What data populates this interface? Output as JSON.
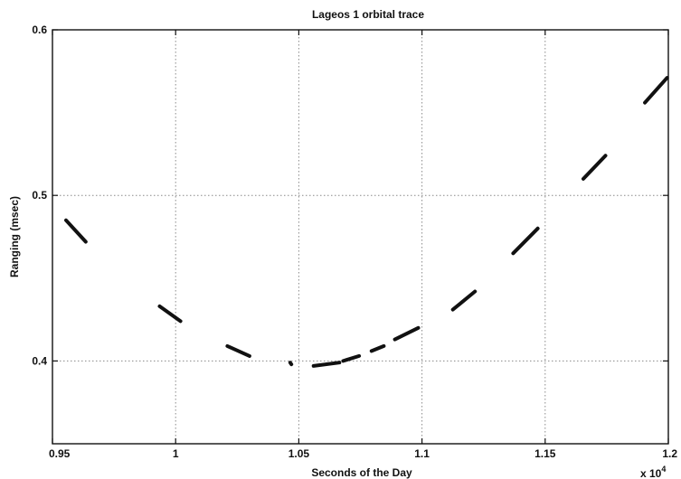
{
  "chart_data": {
    "type": "line",
    "title": "Lageos 1 orbital trace",
    "xlabel": "Seconds of the Day",
    "ylabel": "Ranging (msec)",
    "x_multiplier_label": "x 10",
    "x_multiplier_exponent": "4",
    "xlim": [
      0.95,
      1.2
    ],
    "ylim": [
      0.35,
      0.6
    ],
    "x_ticks": [
      0.95,
      1.0,
      1.05,
      1.1,
      1.15,
      1.2
    ],
    "x_tick_labels": [
      "0.95",
      "1",
      "1.05",
      "1.1",
      "1.15",
      "1.2"
    ],
    "y_ticks": [
      0.4,
      0.5,
      0.6
    ],
    "y_tick_labels": [
      "0.4",
      "0.5",
      "0.6"
    ],
    "grid": true,
    "series": [
      {
        "segments": [
          {
            "x": [
              0.9555,
              0.9635
            ],
            "y": [
              0.485,
              0.472
            ]
          },
          {
            "x": [
              0.9935,
              1.002
            ],
            "y": [
              0.433,
              0.424
            ]
          },
          {
            "x": [
              1.021,
              1.03
            ],
            "y": [
              0.409,
              0.403
            ]
          },
          {
            "x": [
              1.0465,
              1.047
            ],
            "y": [
              0.399,
              0.398
            ]
          },
          {
            "x": [
              1.056,
              1.0665
            ],
            "y": [
              0.397,
              0.399
            ]
          },
          {
            "x": [
              1.068,
              1.0745
            ],
            "y": [
              0.4,
              0.403
            ]
          },
          {
            "x": [
              1.0795,
              1.0845
            ],
            "y": [
              0.406,
              0.409
            ]
          },
          {
            "x": [
              1.089,
              1.0985
            ],
            "y": [
              0.413,
              0.42
            ]
          },
          {
            "x": [
              1.1125,
              1.1215
            ],
            "y": [
              0.431,
              0.442
            ]
          },
          {
            "x": [
              1.137,
              1.147
            ],
            "y": [
              0.465,
              0.48
            ]
          },
          {
            "x": [
              1.1655,
              1.1745
            ],
            "y": [
              0.51,
              0.524
            ]
          },
          {
            "x": [
              1.1905,
              1.1995
            ],
            "y": [
              0.556,
              0.571
            ]
          }
        ]
      }
    ]
  }
}
